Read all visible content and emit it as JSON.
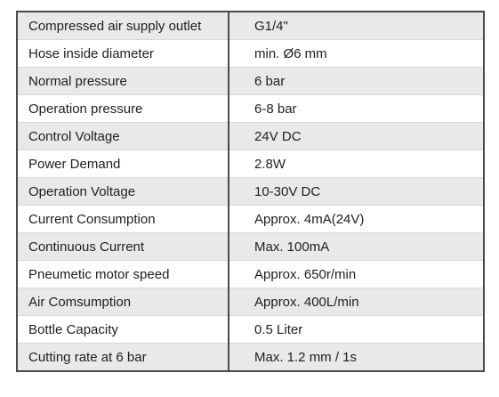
{
  "specs": [
    {
      "label": "Compressed air supply outlet",
      "value": "G1/4\""
    },
    {
      "label": "Hose inside diameter",
      "value": "min. Ø6 mm"
    },
    {
      "label": "Normal pressure",
      "value": "6 bar"
    },
    {
      "label": "Operation pressure",
      "value": "6-8 bar"
    },
    {
      "label": "Control Voltage",
      "value": "24V DC"
    },
    {
      "label": "Power Demand",
      "value": "2.8W"
    },
    {
      "label": "Operation Voltage",
      "value": "10-30V DC"
    },
    {
      "label": "Current Consumption",
      "value": "Approx. 4mA(24V)"
    },
    {
      "label": "Continuous Current",
      "value": "Max. 100mA"
    },
    {
      "label": "Pneumetic motor speed",
      "value": "Approx. 650r/min"
    },
    {
      "label": "Air Comsumption",
      "value": "Approx. 400L/min"
    },
    {
      "label": "Bottle Capacity",
      "value": "0.5 Liter"
    },
    {
      "label": "Cutting rate at 6 bar",
      "value": "Max. 1.2 mm / 1s"
    }
  ]
}
